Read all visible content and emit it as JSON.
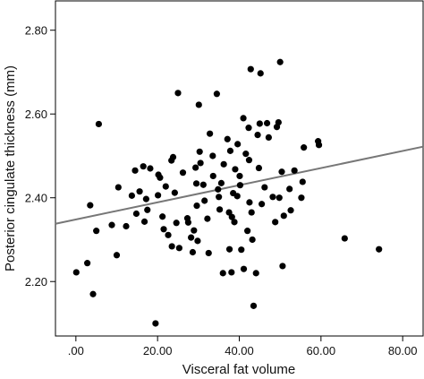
{
  "chart_data": {
    "type": "scatter",
    "xlabel": "Visceral fat volume",
    "ylabel": "Posterior cingulate thickness (mm)",
    "xlim": [
      -5,
      85
    ],
    "ylim": [
      2.07,
      2.87
    ],
    "x_ticks": [
      {
        "value": 0,
        "label": ".00"
      },
      {
        "value": 20,
        "label": "20.00"
      },
      {
        "value": 40,
        "label": "40.00"
      },
      {
        "value": 60,
        "label": "60.00"
      },
      {
        "value": 80,
        "label": "80.00"
      }
    ],
    "y_ticks": [
      {
        "value": 2.2,
        "label": "2.20"
      },
      {
        "value": 2.4,
        "label": "2.40"
      },
      {
        "value": 2.6,
        "label": "2.60"
      },
      {
        "value": 2.8,
        "label": "2.80"
      }
    ],
    "grid": false,
    "points": [
      [
        0.1,
        2.222
      ],
      [
        2.8,
        2.244
      ],
      [
        3.5,
        2.382
      ],
      [
        4.2,
        2.17
      ],
      [
        5.0,
        2.321
      ],
      [
        5.6,
        2.576
      ],
      [
        8.8,
        2.335
      ],
      [
        10.0,
        2.263
      ],
      [
        10.4,
        2.425
      ],
      [
        12.3,
        2.332
      ],
      [
        13.7,
        2.405
      ],
      [
        14.5,
        2.465
      ],
      [
        14.8,
        2.362
      ],
      [
        15.6,
        2.415
      ],
      [
        16.5,
        2.475
      ],
      [
        16.8,
        2.343
      ],
      [
        17.2,
        2.397
      ],
      [
        17.5,
        2.371
      ],
      [
        18.2,
        2.47
      ],
      [
        19.5,
        2.1
      ],
      [
        20.2,
        2.455
      ],
      [
        20.6,
        2.448
      ],
      [
        20.1,
        2.406
      ],
      [
        21.2,
        2.355
      ],
      [
        21.5,
        2.325
      ],
      [
        22.0,
        2.427
      ],
      [
        22.6,
        2.311
      ],
      [
        23.4,
        2.489
      ],
      [
        23.8,
        2.497
      ],
      [
        23.5,
        2.284
      ],
      [
        24.2,
        2.412
      ],
      [
        24.6,
        2.34
      ],
      [
        25.0,
        2.65
      ],
      [
        25.3,
        2.28
      ],
      [
        26.2,
        2.46
      ],
      [
        27.3,
        2.351
      ],
      [
        27.5,
        2.341
      ],
      [
        28.2,
        2.305
      ],
      [
        28.6,
        2.27
      ],
      [
        28.9,
        2.322
      ],
      [
        29.3,
        2.472
      ],
      [
        29.5,
        2.434
      ],
      [
        29.6,
        2.381
      ],
      [
        29.8,
        2.297
      ],
      [
        30.1,
        2.622
      ],
      [
        30.3,
        2.51
      ],
      [
        30.5,
        2.483
      ],
      [
        31.2,
        2.431
      ],
      [
        31.5,
        2.393
      ],
      [
        32.2,
        2.35
      ],
      [
        32.5,
        2.268
      ],
      [
        32.8,
        2.553
      ],
      [
        33.5,
        2.5
      ],
      [
        33.6,
        2.452
      ],
      [
        34.5,
        2.648
      ],
      [
        34.8,
        2.42
      ],
      [
        35.0,
        2.402
      ],
      [
        35.2,
        2.372
      ],
      [
        35.6,
        2.435
      ],
      [
        36.0,
        2.22
      ],
      [
        36.2,
        2.48
      ],
      [
        37.1,
        2.54
      ],
      [
        37.5,
        2.365
      ],
      [
        37.6,
        2.277
      ],
      [
        37.8,
        2.512
      ],
      [
        38.1,
        2.222
      ],
      [
        38.2,
        2.354
      ],
      [
        38.5,
        2.411
      ],
      [
        38.8,
        2.342
      ],
      [
        39.0,
        2.468
      ],
      [
        39.5,
        2.404
      ],
      [
        39.6,
        2.528
      ],
      [
        40.1,
        2.452
      ],
      [
        40.2,
        2.43
      ],
      [
        40.5,
        2.276
      ],
      [
        41.0,
        2.59
      ],
      [
        41.1,
        2.23
      ],
      [
        41.6,
        2.505
      ],
      [
        42.0,
        2.321
      ],
      [
        42.3,
        2.567
      ],
      [
        42.4,
        2.49
      ],
      [
        42.5,
        2.389
      ],
      [
        42.8,
        2.707
      ],
      [
        43.0,
        2.365
      ],
      [
        43.2,
        2.3
      ],
      [
        43.5,
        2.142
      ],
      [
        44.1,
        2.22
      ],
      [
        44.5,
        2.55
      ],
      [
        44.8,
        2.471
      ],
      [
        45.0,
        2.577
      ],
      [
        45.2,
        2.697
      ],
      [
        45.5,
        2.385
      ],
      [
        46.2,
        2.425
      ],
      [
        46.8,
        2.578
      ],
      [
        47.2,
        2.544
      ],
      [
        48.2,
        2.402
      ],
      [
        48.8,
        2.342
      ],
      [
        49.2,
        2.569
      ],
      [
        49.6,
        2.58
      ],
      [
        49.8,
        2.4
      ],
      [
        50.0,
        2.724
      ],
      [
        50.4,
        2.462
      ],
      [
        50.6,
        2.237
      ],
      [
        50.9,
        2.357
      ],
      [
        52.3,
        2.421
      ],
      [
        52.6,
        2.37
      ],
      [
        53.5,
        2.465
      ],
      [
        55.2,
        2.4
      ],
      [
        55.5,
        2.438
      ],
      [
        55.8,
        2.52
      ],
      [
        59.3,
        2.535
      ],
      [
        59.5,
        2.526
      ],
      [
        65.8,
        2.303
      ],
      [
        74.2,
        2.277
      ]
    ],
    "fit_line": {
      "x": [
        -5,
        85
      ],
      "y": [
        2.338,
        2.522
      ]
    },
    "colors": {
      "points": "#000000",
      "fit_line": "#777777",
      "axes": "#000000"
    }
  }
}
